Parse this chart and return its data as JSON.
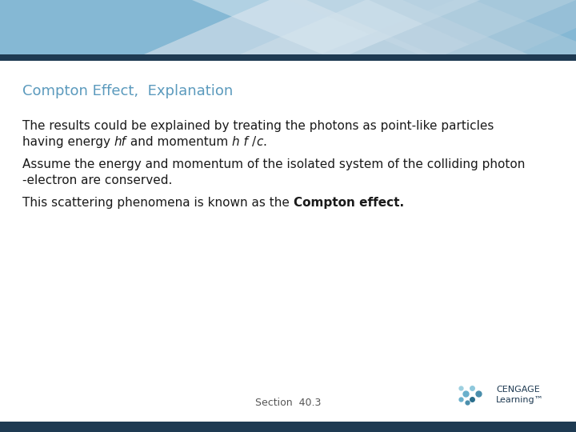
{
  "title": "Compton Effect,  Explanation",
  "title_color": "#5b9abd",
  "background_color": "#ffffff",
  "header_bg_color": "#85b8d4",
  "header_bar_color": "#1e3a52",
  "body_text_color": "#1a1a1a",
  "title_fontsize": 13,
  "body_fontsize": 11,
  "section_label": "Section  40.3",
  "section_fontsize": 9,
  "cengage_text": "CENGAGE\nLearning™",
  "cengage_color": "#1e3a52"
}
